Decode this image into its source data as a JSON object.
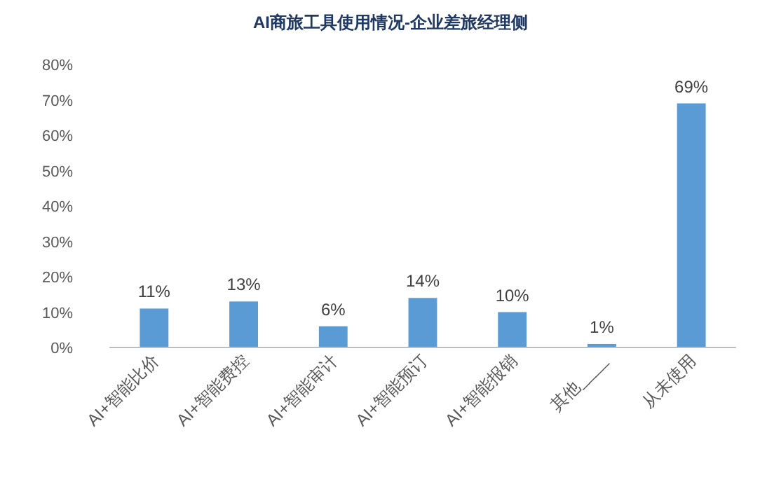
{
  "chart_data": {
    "type": "bar",
    "title": "AI商旅工具使用情况-企业差旅经理侧",
    "categories": [
      "AI+智能比价",
      "AI+智能费控",
      "AI+智能审计",
      "AI+智能预订",
      "AI+智能报销",
      "其他____",
      "从未使用"
    ],
    "values": [
      11,
      13,
      6,
      14,
      10,
      1,
      69
    ],
    "value_labels": [
      "11%",
      "13%",
      "6%",
      "14%",
      "10%",
      "1%",
      "69%"
    ],
    "color": "#5b9bd5",
    "ylim": [
      0,
      80
    ],
    "yticks": [
      {
        "value": 0,
        "label": "0%"
      },
      {
        "value": 10,
        "label": "10%"
      },
      {
        "value": 20,
        "label": "20%"
      },
      {
        "value": 30,
        "label": "30%"
      },
      {
        "value": 40,
        "label": "40%"
      },
      {
        "value": 50,
        "label": "50%"
      },
      {
        "value": 60,
        "label": "60%"
      },
      {
        "value": 70,
        "label": "70%"
      },
      {
        "value": 80,
        "label": "80%"
      }
    ],
    "grid": false
  }
}
